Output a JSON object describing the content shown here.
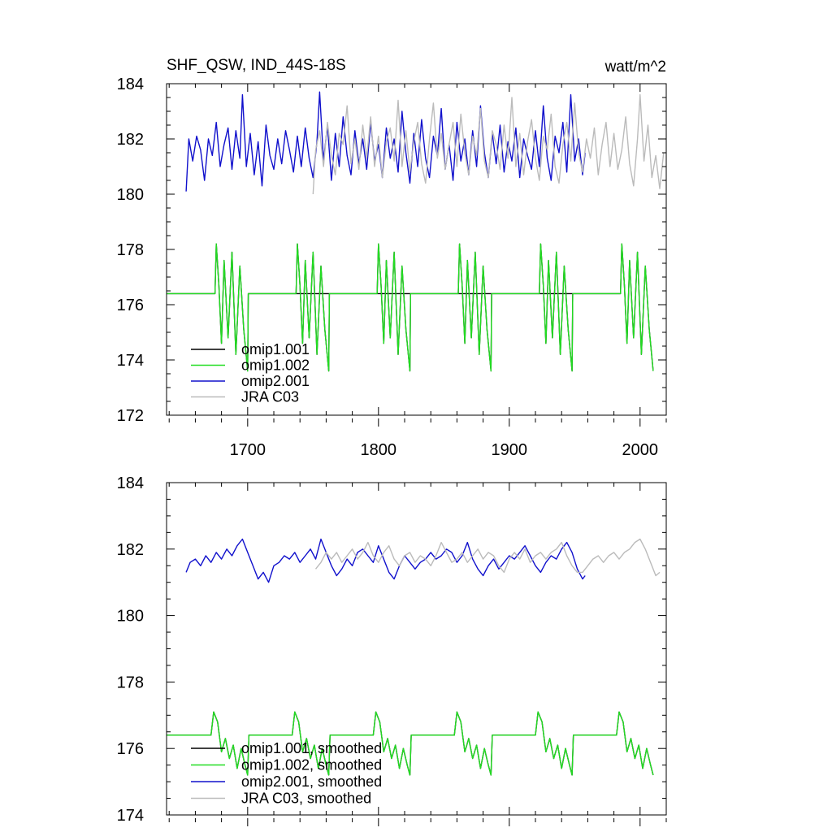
{
  "chart_data": [
    {
      "type": "line",
      "title": "SHF_QSW, IND_44S-18S",
      "units": "watt/m^2",
      "xlabel": "",
      "ylabel": "",
      "xlim": [
        1638,
        2020
      ],
      "ylim": [
        172,
        184
      ],
      "x_ticks": [
        1700,
        1800,
        1900,
        2000
      ],
      "x_tick_labels": [
        "1700",
        "1800",
        "1900",
        "2000"
      ],
      "y_ticks": [
        172,
        174,
        176,
        178,
        180,
        182,
        184
      ],
      "y_tick_labels": [
        "172",
        "174",
        "176",
        "178",
        "180",
        "182",
        "184"
      ],
      "legend_position": "bottom-left",
      "legend": [
        "omip1.001",
        "omip1.002",
        "omip2.001",
        "JRA C03"
      ],
      "colors": [
        "#000000",
        "#22dd22",
        "#1010cc",
        "#bbbbbb"
      ],
      "series": [
        {
          "name": "omip1.001",
          "color": "#000000",
          "cycle_years": 62,
          "start": 1638,
          "end": 2010,
          "x": [
            1638,
            1675,
            1676,
            1678,
            1680,
            1682,
            1685,
            1688,
            1691,
            1694,
            1697,
            1700,
            1700.5,
            1737,
            1738,
            1740,
            1742,
            1744,
            1747,
            1750,
            1753,
            1756,
            1759,
            1762,
            1762.5
          ],
          "values": [
            176.4,
            176.4,
            178.2,
            176.7,
            174.6,
            177.6,
            174.8,
            177.9,
            174.2,
            177.4,
            175.1,
            173.6,
            176.4,
            176.4,
            178.2,
            176.7,
            174.6,
            177.6,
            174.8,
            177.9,
            174.2,
            177.4,
            175.1,
            173.6,
            176.4
          ]
        },
        {
          "name": "omip1.002",
          "color": "#22dd22",
          "cycle_years": 62,
          "start": 1638,
          "end": 2010,
          "x": [
            1638,
            1675,
            1676,
            1678,
            1680,
            1682,
            1685,
            1688,
            1691,
            1694,
            1697,
            1700,
            1700.5
          ],
          "values": [
            176.4,
            176.4,
            178.2,
            176.7,
            174.6,
            177.6,
            174.8,
            177.9,
            174.2,
            177.4,
            175.1,
            173.6,
            176.4
          ]
        },
        {
          "name": "omip2.001",
          "color": "#1010cc",
          "x": [
            1653,
            1655,
            1658,
            1661,
            1664,
            1667,
            1670,
            1673,
            1676,
            1679,
            1682,
            1685,
            1688,
            1691,
            1694,
            1696,
            1699,
            1702,
            1705,
            1708,
            1711,
            1714,
            1717,
            1720,
            1723,
            1726,
            1729,
            1732,
            1735,
            1738,
            1741,
            1744,
            1747,
            1750,
            1753,
            1755,
            1758,
            1761,
            1764,
            1767,
            1770,
            1773,
            1776,
            1779,
            1782,
            1785,
            1788,
            1791,
            1794,
            1797,
            1800,
            1803,
            1806,
            1809,
            1812,
            1815,
            1818,
            1821,
            1824,
            1827,
            1830,
            1833,
            1836,
            1839,
            1842,
            1845,
            1848,
            1851,
            1854,
            1857,
            1860,
            1863,
            1866,
            1869,
            1872,
            1875,
            1878,
            1881,
            1884,
            1887,
            1890,
            1893,
            1896,
            1899,
            1902,
            1905,
            1908,
            1911,
            1914,
            1917,
            1920,
            1923,
            1926,
            1929,
            1932,
            1935,
            1938,
            1941,
            1944,
            1947,
            1950,
            1953,
            1956,
            1958
          ],
          "values": [
            180.1,
            182.0,
            181.2,
            182.1,
            181.6,
            180.5,
            182.0,
            181.4,
            182.6,
            181.0,
            181.8,
            182.4,
            180.9,
            182.3,
            181.3,
            183.6,
            181.0,
            182.2,
            180.7,
            181.9,
            180.3,
            182.5,
            181.4,
            180.9,
            182.0,
            181.1,
            182.3,
            181.6,
            180.8,
            182.1,
            181.0,
            182.4,
            181.3,
            180.6,
            181.9,
            183.7,
            181.2,
            182.5,
            180.5,
            182.2,
            181.0,
            182.8,
            181.4,
            180.7,
            182.3,
            181.1,
            182.0,
            180.9,
            182.6,
            181.2,
            181.8,
            180.6,
            182.4,
            181.3,
            182.0,
            180.8,
            183.0,
            181.5,
            180.4,
            182.2,
            181.0,
            182.7,
            181.3,
            180.6,
            182.1,
            181.4,
            183.1,
            180.9,
            181.8,
            180.5,
            182.6,
            181.2,
            182.0,
            180.7,
            182.3,
            181.0,
            183.2,
            181.5,
            180.6,
            182.2,
            181.1,
            182.5,
            180.8,
            181.9,
            181.2,
            182.4,
            180.6,
            182.0,
            181.4,
            180.9,
            182.3,
            181.0,
            183.2,
            181.3,
            180.5,
            182.1,
            181.5,
            182.6,
            180.8,
            183.6,
            181.2,
            182.0,
            180.7,
            181.5
          ]
        },
        {
          "name": "JRA C03",
          "color": "#bbbbbb",
          "x": [
            1750,
            1752,
            1755,
            1758,
            1761,
            1764,
            1767,
            1770,
            1773,
            1776,
            1779,
            1782,
            1785,
            1788,
            1791,
            1794,
            1797,
            1800,
            1803,
            1806,
            1809,
            1812,
            1815,
            1818,
            1821,
            1824,
            1827,
            1830,
            1833,
            1836,
            1839,
            1842,
            1845,
            1848,
            1851,
            1854,
            1857,
            1860,
            1863,
            1866,
            1869,
            1872,
            1875,
            1878,
            1881,
            1884,
            1887,
            1890,
            1893,
            1896,
            1899,
            1902,
            1905,
            1908,
            1911,
            1914,
            1917,
            1920,
            1923,
            1926,
            1929,
            1932,
            1935,
            1938,
            1941,
            1944,
            1947,
            1950,
            1953,
            1956,
            1959,
            1962,
            1965,
            1968,
            1971,
            1974,
            1977,
            1980,
            1983,
            1986,
            1989,
            1992,
            1995,
            1998,
            2000,
            2003,
            2006,
            2009,
            2012,
            2015,
            2018
          ],
          "values": [
            180.0,
            181.6,
            182.3,
            181.0,
            182.6,
            181.4,
            180.7,
            182.2,
            181.8,
            183.2,
            181.1,
            182.0,
            180.9,
            182.5,
            181.3,
            182.8,
            181.0,
            182.1,
            180.6,
            181.9,
            182.4,
            181.2,
            183.4,
            181.0,
            182.3,
            180.8,
            181.9,
            182.6,
            181.1,
            180.4,
            182.0,
            183.3,
            181.3,
            182.2,
            180.9,
            181.8,
            182.6,
            181.0,
            182.9,
            181.5,
            180.7,
            182.1,
            181.4,
            183.1,
            181.2,
            180.6,
            182.3,
            181.8,
            180.9,
            182.5,
            181.3,
            183.5,
            181.0,
            182.2,
            180.7,
            181.9,
            182.7,
            181.3,
            180.5,
            182.1,
            181.6,
            182.9,
            181.0,
            180.4,
            181.8,
            182.6,
            181.2,
            183.3,
            181.5,
            180.8,
            182.0,
            181.3,
            182.4,
            180.7,
            181.8,
            182.6,
            181.0,
            182.2,
            180.9,
            181.6,
            182.8,
            181.1,
            180.3,
            182.0,
            183.6,
            181.2,
            182.5,
            180.6,
            181.4,
            180.2,
            181.5
          ]
        }
      ]
    },
    {
      "type": "line",
      "title": "",
      "xlabel": "",
      "ylabel": "",
      "xlim": [
        1638,
        2020
      ],
      "ylim": [
        174,
        184
      ],
      "x_ticks": [
        1700,
        1800,
        1900,
        2000
      ],
      "x_tick_labels": [],
      "y_ticks": [
        174,
        176,
        178,
        180,
        182,
        184
      ],
      "y_tick_labels": [
        "174",
        "176",
        "178",
        "180",
        "182",
        "184"
      ],
      "legend_position": "bottom-left",
      "legend": [
        "omip1.001, smoothed",
        "omip1.002, smoothed",
        "omip2.001, smoothed",
        "JRA C03, smoothed"
      ],
      "colors": [
        "#000000",
        "#22dd22",
        "#1010cc",
        "#bbbbbb"
      ],
      "series": [
        {
          "name": "omip1.001, smoothed",
          "color": "#000000",
          "cycle_years": 62,
          "start": 1638,
          "end": 2010,
          "x": [
            1638,
            1672,
            1674,
            1677,
            1680,
            1683,
            1686,
            1689,
            1692,
            1695,
            1698,
            1700,
            1701
          ],
          "values": [
            176.4,
            176.4,
            177.1,
            176.8,
            175.9,
            176.3,
            175.7,
            176.1,
            175.4,
            176.0,
            175.5,
            175.2,
            176.4
          ]
        },
        {
          "name": "omip1.002, smoothed",
          "color": "#22dd22",
          "cycle_years": 62,
          "start": 1638,
          "end": 2010,
          "x": [
            1638,
            1672,
            1674,
            1677,
            1680,
            1683,
            1686,
            1689,
            1692,
            1695,
            1698,
            1700,
            1701
          ],
          "values": [
            176.4,
            176.4,
            177.1,
            176.8,
            175.9,
            176.3,
            175.7,
            176.1,
            175.4,
            176.0,
            175.5,
            175.2,
            176.4
          ]
        },
        {
          "name": "omip2.001, smoothed",
          "color": "#1010cc",
          "x": [
            1653,
            1656,
            1660,
            1664,
            1668,
            1672,
            1676,
            1680,
            1684,
            1688,
            1692,
            1696,
            1700,
            1704,
            1708,
            1712,
            1716,
            1720,
            1724,
            1728,
            1732,
            1736,
            1740,
            1744,
            1748,
            1752,
            1756,
            1760,
            1764,
            1768,
            1772,
            1776,
            1780,
            1784,
            1788,
            1792,
            1796,
            1800,
            1804,
            1808,
            1812,
            1816,
            1820,
            1824,
            1828,
            1832,
            1836,
            1840,
            1844,
            1848,
            1852,
            1856,
            1860,
            1864,
            1868,
            1872,
            1876,
            1880,
            1884,
            1888,
            1892,
            1896,
            1900,
            1904,
            1908,
            1912,
            1916,
            1920,
            1924,
            1928,
            1932,
            1936,
            1940,
            1944,
            1948,
            1952,
            1956,
            1958
          ],
          "values": [
            181.3,
            181.6,
            181.7,
            181.5,
            181.8,
            181.6,
            181.9,
            181.7,
            182.0,
            181.8,
            182.1,
            182.3,
            181.9,
            181.5,
            181.1,
            181.3,
            181.0,
            181.5,
            181.6,
            181.8,
            181.7,
            181.9,
            181.6,
            181.8,
            182.0,
            181.7,
            182.3,
            181.9,
            181.5,
            181.2,
            181.4,
            181.7,
            181.5,
            181.9,
            182.0,
            181.8,
            181.6,
            182.1,
            181.7,
            181.3,
            181.1,
            181.5,
            181.8,
            181.6,
            181.4,
            181.6,
            181.7,
            181.9,
            181.7,
            181.8,
            182.0,
            181.9,
            181.6,
            181.8,
            182.2,
            181.7,
            181.4,
            181.2,
            181.5,
            181.7,
            181.4,
            181.6,
            181.8,
            181.7,
            181.9,
            182.1,
            181.8,
            181.5,
            181.3,
            181.6,
            181.8,
            181.7,
            182.0,
            182.2,
            181.9,
            181.4,
            181.1,
            181.2
          ]
        },
        {
          "name": "JRA C03, smoothed",
          "color": "#bbbbbb",
          "x": [
            1752,
            1756,
            1760,
            1764,
            1768,
            1772,
            1776,
            1780,
            1784,
            1788,
            1792,
            1796,
            1800,
            1804,
            1808,
            1812,
            1816,
            1820,
            1824,
            1828,
            1832,
            1836,
            1840,
            1844,
            1848,
            1852,
            1856,
            1860,
            1864,
            1868,
            1872,
            1876,
            1880,
            1884,
            1888,
            1892,
            1896,
            1900,
            1904,
            1908,
            1912,
            1916,
            1920,
            1924,
            1928,
            1932,
            1936,
            1940,
            1944,
            1948,
            1952,
            1956,
            1960,
            1964,
            1968,
            1972,
            1976,
            1980,
            1984,
            1988,
            1992,
            1996,
            2000,
            2004,
            2008,
            2012,
            2015
          ],
          "values": [
            181.4,
            181.6,
            181.9,
            181.7,
            181.9,
            181.6,
            181.8,
            182.0,
            181.7,
            181.9,
            182.2,
            181.8,
            181.6,
            181.9,
            182.1,
            181.7,
            181.5,
            181.8,
            181.9,
            181.6,
            181.8,
            181.7,
            181.5,
            181.8,
            182.2,
            181.9,
            181.6,
            181.7,
            181.9,
            181.6,
            181.8,
            182.0,
            181.7,
            181.9,
            181.8,
            181.5,
            181.3,
            181.7,
            181.9,
            181.7,
            182.0,
            181.6,
            181.8,
            181.9,
            181.7,
            181.9,
            182.0,
            182.2,
            181.8,
            181.5,
            181.3,
            181.3,
            181.5,
            181.7,
            181.8,
            181.6,
            181.8,
            181.9,
            181.7,
            181.9,
            182.0,
            182.2,
            182.3,
            182.0,
            181.6,
            181.2,
            181.3
          ]
        }
      ]
    }
  ]
}
